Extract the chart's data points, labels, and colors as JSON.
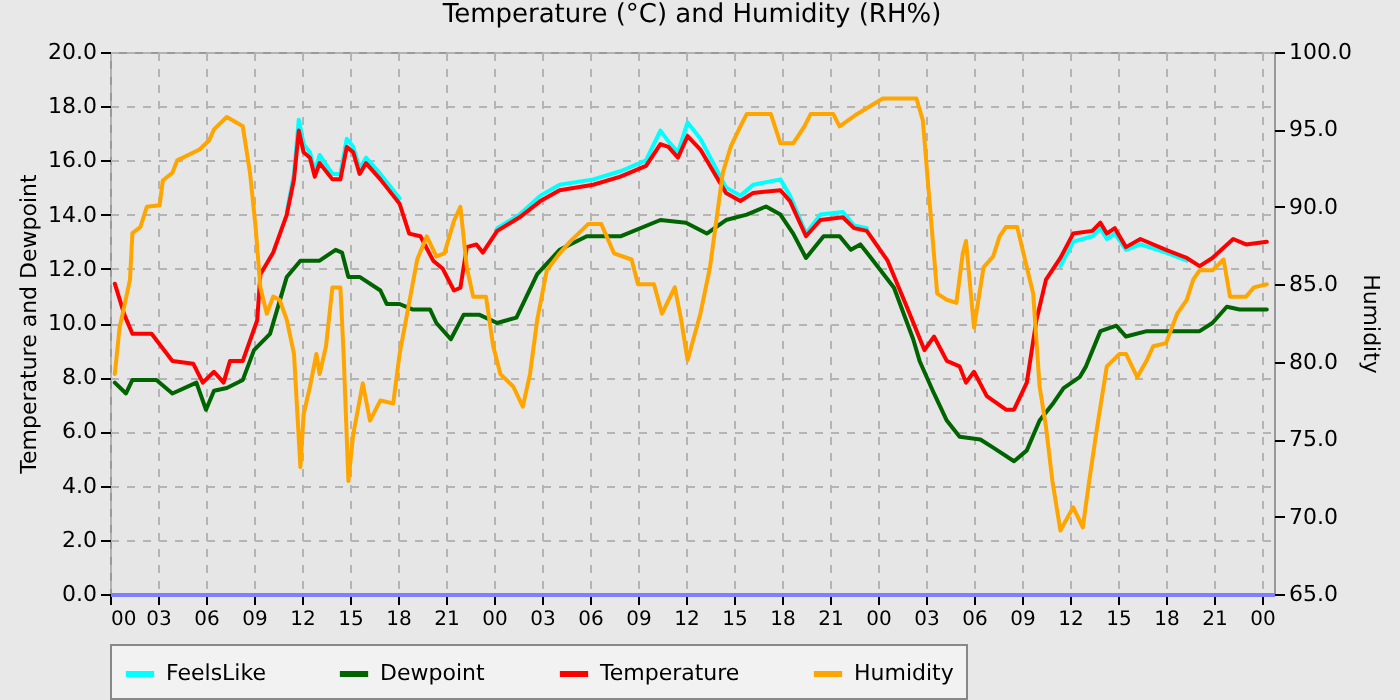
{
  "chart_data": {
    "type": "line",
    "title": "Temperature (°C) and Humidity (RH%)",
    "ylabel": "Temperature and Dewpoint",
    "y2label": "Humidity",
    "grid": true,
    "legend": "bottom",
    "marker": "none",
    "line_style": "solid",
    "xlim": [
      0,
      72.75
    ],
    "ylim": [
      0,
      20
    ],
    "y2lim": [
      65,
      100
    ],
    "xticks": [
      {
        "value": 0,
        "label": "00"
      },
      {
        "value": 3,
        "label": "03"
      },
      {
        "value": 6,
        "label": "06"
      },
      {
        "value": 9,
        "label": "09"
      },
      {
        "value": 12,
        "label": "12"
      },
      {
        "value": 15,
        "label": "15"
      },
      {
        "value": 18,
        "label": "18"
      },
      {
        "value": 21,
        "label": "21"
      },
      {
        "value": 24,
        "label": "00"
      },
      {
        "value": 27,
        "label": "03"
      },
      {
        "value": 30,
        "label": "06"
      },
      {
        "value": 33,
        "label": "09"
      },
      {
        "value": 36,
        "label": "12"
      },
      {
        "value": 39,
        "label": "15"
      },
      {
        "value": 42,
        "label": "18"
      },
      {
        "value": 45,
        "label": "21"
      },
      {
        "value": 48,
        "label": "00"
      },
      {
        "value": 51,
        "label": "03"
      },
      {
        "value": 54,
        "label": "06"
      },
      {
        "value": 57,
        "label": "09"
      },
      {
        "value": 60,
        "label": "12"
      },
      {
        "value": 63,
        "label": "15"
      },
      {
        "value": 66,
        "label": "18"
      },
      {
        "value": 69,
        "label": "21"
      },
      {
        "value": 72,
        "label": "00"
      }
    ],
    "yticks": [
      {
        "value": 0,
        "label": "0.0"
      },
      {
        "value": 2,
        "label": "2.0"
      },
      {
        "value": 4,
        "label": "4.0"
      },
      {
        "value": 6,
        "label": "6.0"
      },
      {
        "value": 8,
        "label": "8.0"
      },
      {
        "value": 10,
        "label": "10.0"
      },
      {
        "value": 12,
        "label": "12.0"
      },
      {
        "value": 14,
        "label": "14.0"
      },
      {
        "value": 16,
        "label": "16.0"
      },
      {
        "value": 18,
        "label": "18.0"
      },
      {
        "value": 20,
        "label": "20.0"
      }
    ],
    "y2ticks": [
      {
        "value": 65,
        "label": "65.0"
      },
      {
        "value": 70,
        "label": "70.0"
      },
      {
        "value": 75,
        "label": "75.0"
      },
      {
        "value": 80,
        "label": "80.0"
      },
      {
        "value": 85,
        "label": "85.0"
      },
      {
        "value": 90,
        "label": "90.0"
      },
      {
        "value": 95,
        "label": "95.0"
      },
      {
        "value": 100,
        "label": "100.0"
      }
    ],
    "series": [
      {
        "name": "FeelsLike",
        "color": "#00ffff",
        "x": [
          11.05,
          11.5,
          11.8,
          12.1,
          12.5,
          12.8,
          13.1,
          13.9,
          14.4,
          14.8,
          15.2,
          15.6,
          16.0,
          16.9,
          17.7,
          18.1,
          20.0,
          24.2,
          25.6,
          26.9,
          28.1,
          30.2,
          31.9,
          33.5,
          34.4,
          34.9,
          35.5,
          36.1,
          36.9,
          37.7,
          38.5,
          39.4,
          40.2,
          41.9,
          42.5,
          43.5,
          44.4,
          45.8,
          46.5,
          47.3,
          52.0,
          59.4,
          60.2,
          61.4,
          61.9,
          62.3,
          62.8,
          63.5,
          64.4,
          66.0,
          67.3
        ],
        "values": [
          14.1,
          15.5,
          17.5,
          16.6,
          16.3,
          15.6,
          16.2,
          15.5,
          15.5,
          16.8,
          16.5,
          15.7,
          16.1,
          15.5,
          14.9,
          14.6,
          null,
          13.5,
          14.0,
          14.7,
          15.1,
          15.3,
          15.6,
          16.0,
          17.1,
          16.7,
          16.3,
          17.4,
          16.8,
          15.9,
          15.0,
          14.7,
          15.1,
          15.3,
          14.7,
          13.3,
          14.0,
          14.1,
          13.6,
          13.5,
          null,
          12.1,
          13.0,
          13.2,
          13.5,
          13.1,
          13.3,
          12.7,
          12.9,
          12.6,
          12.3
        ]
      },
      {
        "name": "Dewpoint",
        "color": "#006400",
        "x": [
          0.3,
          1.0,
          1.4,
          2.9,
          3.9,
          5.4,
          6.0,
          6.5,
          7.3,
          8.3,
          9.0,
          10.0,
          11.05,
          11.9,
          13.1,
          14.1,
          14.5,
          14.9,
          15.6,
          16.9,
          17.3,
          18.1,
          18.9,
          20.0,
          20.4,
          21.3,
          22.1,
          23.1,
          24.2,
          25.4,
          26.7,
          28.1,
          29.8,
          31.9,
          34.4,
          36.0,
          37.3,
          38.5,
          39.8,
          41.0,
          41.9,
          42.7,
          43.5,
          44.6,
          45.6,
          46.3,
          46.9,
          47.7,
          49.0,
          50.2,
          50.6,
          51.5,
          52.3,
          53.1,
          54.4,
          55.2,
          56.5,
          57.3,
          58.1,
          58.9,
          59.6,
          60.6,
          61.0,
          61.9,
          62.9,
          63.5,
          64.8,
          66.0,
          68.1,
          68.9,
          69.8,
          70.6,
          72.3
        ],
        "values": [
          7.8,
          7.4,
          7.9,
          7.9,
          7.4,
          7.8,
          6.8,
          7.5,
          7.6,
          7.9,
          9.0,
          9.6,
          11.7,
          12.3,
          12.3,
          12.7,
          12.6,
          11.7,
          11.7,
          11.2,
          10.7,
          10.7,
          10.5,
          10.5,
          10.0,
          9.4,
          10.3,
          10.3,
          10.0,
          10.2,
          11.8,
          12.7,
          13.2,
          13.2,
          13.8,
          13.7,
          13.3,
          13.8,
          14.0,
          14.3,
          14.0,
          13.3,
          12.4,
          13.2,
          13.2,
          12.7,
          12.9,
          12.3,
          11.3,
          9.4,
          8.6,
          7.4,
          6.4,
          5.8,
          5.7,
          5.4,
          4.9,
          5.3,
          6.4,
          7.0,
          7.6,
          8.0,
          8.4,
          9.7,
          9.9,
          9.5,
          9.7,
          9.7,
          9.7,
          10.0,
          10.6,
          10.5,
          10.5
        ]
      },
      {
        "name": "Temperature",
        "color": "#ff0000",
        "x": [
          0.3,
          0.9,
          1.4,
          2.6,
          3.9,
          5.2,
          5.8,
          6.5,
          7.1,
          7.5,
          8.3,
          9.2,
          9.4,
          10.2,
          11.05,
          11.5,
          11.8,
          12.1,
          12.5,
          12.8,
          13.1,
          13.9,
          14.4,
          14.8,
          15.2,
          15.6,
          16.0,
          16.9,
          17.7,
          18.1,
          18.7,
          19.4,
          20.2,
          20.8,
          21.5,
          21.9,
          22.3,
          22.9,
          23.3,
          24.2,
          25.6,
          26.9,
          28.1,
          30.2,
          31.9,
          33.5,
          34.4,
          34.9,
          35.5,
          36.1,
          36.9,
          37.7,
          38.5,
          39.4,
          40.2,
          41.9,
          42.5,
          43.5,
          44.4,
          45.8,
          46.5,
          47.3,
          48.6,
          49.8,
          50.9,
          51.5,
          52.3,
          53.1,
          53.5,
          54.0,
          54.8,
          56.0,
          56.5,
          57.3,
          57.9,
          58.5,
          59.4,
          60.2,
          61.4,
          61.9,
          62.3,
          62.8,
          63.5,
          64.4,
          66.0,
          67.3,
          68.1,
          68.9,
          70.2,
          71.0,
          72.3
        ],
        "values": [
          11.45,
          10.3,
          9.6,
          9.6,
          8.6,
          8.5,
          7.8,
          8.2,
          7.8,
          8.6,
          8.6,
          10.1,
          11.8,
          12.6,
          14.0,
          15.3,
          17.1,
          16.3,
          16.1,
          15.4,
          15.9,
          15.3,
          15.3,
          16.5,
          16.3,
          15.5,
          15.9,
          15.3,
          14.7,
          14.4,
          13.3,
          13.2,
          12.3,
          12.0,
          11.2,
          11.3,
          12.8,
          12.9,
          12.6,
          13.4,
          13.9,
          14.5,
          14.9,
          15.1,
          15.4,
          15.8,
          16.6,
          16.5,
          16.1,
          16.9,
          16.4,
          15.6,
          14.8,
          14.5,
          14.8,
          14.9,
          14.5,
          13.2,
          13.8,
          13.9,
          13.5,
          13.4,
          12.3,
          10.6,
          9.0,
          9.5,
          8.6,
          8.4,
          7.8,
          8.2,
          7.3,
          6.8,
          6.8,
          7.8,
          10.1,
          11.6,
          12.4,
          13.3,
          13.4,
          13.7,
          13.3,
          13.5,
          12.8,
          13.1,
          12.7,
          12.4,
          12.1,
          12.4,
          13.1,
          12.9,
          13.0
        ]
      },
      {
        "name": "Humidity",
        "color": "#ffa500",
        "axis": "y2",
        "x": [
          0.3,
          0.6,
          1.25,
          1.4,
          1.9,
          2.3,
          3.1,
          3.3,
          3.9,
          4.2,
          5.6,
          6.2,
          6.5,
          7.3,
          8.3,
          8.75,
          9.1,
          9.4,
          9.8,
          10.2,
          10.6,
          11.05,
          11.5,
          11.9,
          12.1,
          12.5,
          12.9,
          13.1,
          13.5,
          13.9,
          14.4,
          14.6,
          14.9,
          15.2,
          15.8,
          16.25,
          16.9,
          17.7,
          18.1,
          18.5,
          19.2,
          19.8,
          20.4,
          20.9,
          21.5,
          21.9,
          22.3,
          22.7,
          23.5,
          23.95,
          24.4,
          25.2,
          25.8,
          26.25,
          26.7,
          27.3,
          28.1,
          28.8,
          29.9,
          30.7,
          31.5,
          32.6,
          33.0,
          34.0,
          34.5,
          35.3,
          35.7,
          36.1,
          36.9,
          37.5,
          38.3,
          38.8,
          39.4,
          39.8,
          41.3,
          41.9,
          42.7,
          43.4,
          43.8,
          45.2,
          45.6,
          46.7,
          48.3,
          50.4,
          50.8,
          51.25,
          51.7,
          52.3,
          52.9,
          53.3,
          53.5,
          54.0,
          54.6,
          55.2,
          55.6,
          56.0,
          56.7,
          57.3,
          57.7,
          58.1,
          58.5,
          58.9,
          59.4,
          60.2,
          60.8,
          61.2,
          61.7,
          62.3,
          63.1,
          63.5,
          64.2,
          64.8,
          65.2,
          66.0,
          66.7,
          67.3,
          67.7,
          68.1,
          68.9,
          69.6,
          70.0,
          71.0,
          71.5,
          72.3
        ],
        "values": [
          79.2,
          82.2,
          85.3,
          88.3,
          88.7,
          90.0,
          90.1,
          91.7,
          92.2,
          93.0,
          93.7,
          94.3,
          95.0,
          95.8,
          95.2,
          92.2,
          88.7,
          84.8,
          83.1,
          84.2,
          84.0,
          82.7,
          80.5,
          73.2,
          76.6,
          78.4,
          80.5,
          79.2,
          81.0,
          84.8,
          84.8,
          80.5,
          72.3,
          75.3,
          78.6,
          76.2,
          77.5,
          77.3,
          80.5,
          82.7,
          86.6,
          88.1,
          86.8,
          87.0,
          89.1,
          90.0,
          86.1,
          84.2,
          84.2,
          81.0,
          79.2,
          78.4,
          77.1,
          79.2,
          82.7,
          85.9,
          87.0,
          87.8,
          88.9,
          88.9,
          87.0,
          86.6,
          85.0,
          85.0,
          83.1,
          84.8,
          82.7,
          80.1,
          83.1,
          86.1,
          92.2,
          93.9,
          95.2,
          96.0,
          96.0,
          94.1,
          94.1,
          95.2,
          96.0,
          96.0,
          95.2,
          96.0,
          97.0,
          97.0,
          95.6,
          90.0,
          84.4,
          84.0,
          83.8,
          87.0,
          87.8,
          82.2,
          86.1,
          86.8,
          88.1,
          88.7,
          88.7,
          86.1,
          84.4,
          78.4,
          75.8,
          72.3,
          69.1,
          70.6,
          69.3,
          72.3,
          75.8,
          79.7,
          80.5,
          80.5,
          79.0,
          80.1,
          81.0,
          81.2,
          83.1,
          84.0,
          85.3,
          85.9,
          85.9,
          86.6,
          84.2,
          84.2,
          84.8,
          85.0
        ]
      }
    ]
  }
}
